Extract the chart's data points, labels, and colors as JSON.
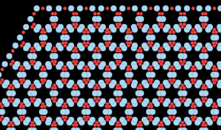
{
  "background_color": "#000000",
  "si_color": "#add8f0",
  "si_edge_color": "#88bbdd",
  "o_color": "#e84040",
  "o_edge_color": "#c02828",
  "si_size": 22,
  "o_size": 7,
  "figsize": [
    2.51,
    1.47
  ],
  "dpi": 100,
  "hex_r": 14.0,
  "nx_range": [
    -1,
    12
  ],
  "ny_range": [
    -1,
    7
  ]
}
